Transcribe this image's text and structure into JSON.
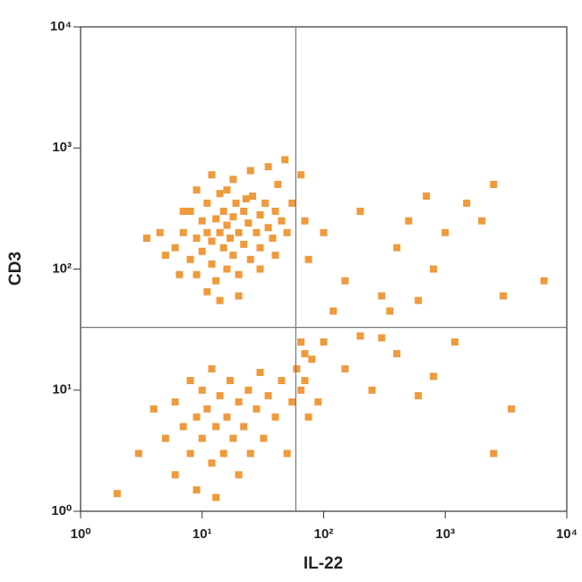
{
  "chart_data": {
    "type": "scatter",
    "xlabel": "IL-22",
    "ylabel": "CD3",
    "xscale": "log",
    "yscale": "log",
    "xlim": [
      1,
      10000
    ],
    "ylim": [
      1,
      10000
    ],
    "xticks": [
      {
        "value": 1,
        "label": "10⁰"
      },
      {
        "value": 10,
        "label": "10¹"
      },
      {
        "value": 100,
        "label": "10²"
      },
      {
        "value": 1000,
        "label": "10³"
      },
      {
        "value": 10000,
        "label": "10⁴"
      }
    ],
    "yticks": [
      {
        "value": 1,
        "label": "10⁰"
      },
      {
        "value": 10,
        "label": "10¹"
      },
      {
        "value": 100,
        "label": "10²"
      },
      {
        "value": 1000,
        "label": "10³"
      },
      {
        "value": 10000,
        "label": "10⁴"
      }
    ],
    "quadrant_x": 59,
    "quadrant_y": 33,
    "color": "#ef9a3c",
    "x": [
      6,
      7,
      8,
      8,
      9,
      9,
      10,
      10,
      11,
      11,
      12,
      12,
      13,
      13,
      14,
      14,
      15,
      15,
      16,
      16,
      17,
      18,
      18,
      19,
      20,
      20,
      22,
      22,
      24,
      25,
      26,
      28,
      30,
      30,
      33,
      35,
      38,
      40,
      42,
      45,
      50,
      55,
      5,
      4.5,
      6.5,
      7,
      9,
      12,
      18,
      25,
      35,
      48,
      20,
      14,
      30,
      40,
      3.5,
      11,
      16,
      23,
      6,
      7,
      8,
      8,
      9,
      10,
      10,
      11,
      12,
      12,
      13,
      14,
      15,
      16,
      17,
      18,
      20,
      20,
      22,
      24,
      25,
      28,
      30,
      32,
      35,
      40,
      45,
      50,
      55,
      60,
      65,
      70,
      75,
      5,
      4,
      6,
      9,
      13,
      2,
      3,
      65,
      70,
      75,
      100,
      150,
      200,
      300,
      400,
      500,
      700,
      1000,
      1500,
      2500,
      3000,
      6500,
      350,
      600,
      120,
      800,
      2000,
      65,
      70,
      80,
      90,
      100,
      150,
      200,
      250,
      300,
      400,
      600,
      800,
      1200,
      2500,
      3500
    ],
    "values": [
      150,
      200,
      120,
      300,
      180,
      90,
      250,
      140,
      200,
      350,
      110,
      170,
      260,
      80,
      200,
      420,
      150,
      300,
      230,
      100,
      180,
      270,
      130,
      350,
      200,
      90,
      160,
      300,
      240,
      120,
      400,
      200,
      280,
      150,
      350,
      220,
      180,
      300,
      500,
      250,
      200,
      350,
      130,
      200,
      90,
      300,
      450,
      600,
      550,
      650,
      700,
      800,
      60,
      55,
      100,
      130,
      180,
      65,
      450,
      380,
      8,
      5,
      12,
      3,
      6,
      10,
      4,
      7,
      15,
      2.5,
      5,
      9,
      3,
      6,
      12,
      4,
      8,
      2,
      5,
      10,
      3,
      7,
      14,
      4,
      9,
      6,
      12,
      3,
      8,
      15,
      10,
      20,
      6,
      4,
      7,
      2,
      1.5,
      1.3,
      1.4,
      3,
      600,
      250,
      120,
      200,
      80,
      300,
      60,
      150,
      250,
      400,
      200,
      350,
      500,
      60,
      80,
      45,
      55,
      45,
      100,
      250,
      25,
      12,
      18,
      8,
      25,
      15,
      28,
      10,
      27,
      20,
      9,
      13,
      25,
      3,
      7
    ]
  }
}
